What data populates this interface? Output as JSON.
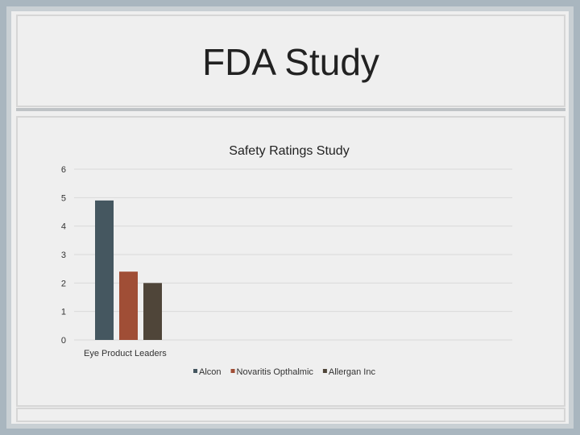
{
  "slide": {
    "title": "FDA Study"
  },
  "chart_data": {
    "type": "bar",
    "title": "Safety Ratings Study",
    "categories": [
      "Eye Product Leaders"
    ],
    "series": [
      {
        "name": "Alcon",
        "values": [
          4.9
        ],
        "color": "#455760"
      },
      {
        "name": "Novaritis Opthalmic",
        "values": [
          2.4
        ],
        "color": "#a04e36"
      },
      {
        "name": "Allergan Inc",
        "values": [
          2.0
        ],
        "color": "#4f4539"
      }
    ],
    "ylim": [
      0,
      6
    ],
    "yticks": [
      0,
      1,
      2,
      3,
      4,
      5,
      6
    ],
    "grid": true,
    "legend": "bottom"
  }
}
